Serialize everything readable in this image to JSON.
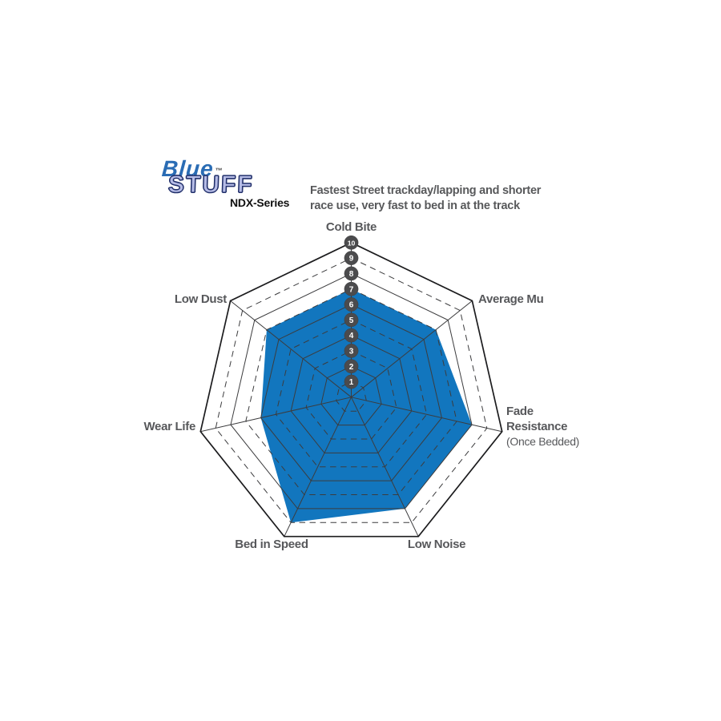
{
  "page": {
    "background": "#ffffff"
  },
  "header": {
    "logo": {
      "word_top": "Blue",
      "tm": "™",
      "word_bottom": "STUFF",
      "series": "NDX-Series",
      "blue_color": "#2a6cb4",
      "lavender_color": "#b6bce6",
      "outline_color": "#22306b"
    },
    "description": "Fastest Street trackday/lapping and shorter\nrace use, very fast to bed in at the track",
    "text_color": "#58595b"
  },
  "chart_data": {
    "type": "radar",
    "title": "BlueStuff NDX-Series performance ratings",
    "categories": [
      "Cold Bite",
      "Average Mu",
      "Fade Resistance (Once Bedded)",
      "Low Noise",
      "Bed in Speed",
      "Wear Life",
      "Low Dust"
    ],
    "axes": [
      {
        "label": "Cold Bite"
      },
      {
        "label": "Average Mu"
      },
      {
        "label": "Fade Resistance",
        "sublabel": "(Once Bedded)"
      },
      {
        "label": "Low Noise"
      },
      {
        "label": "Bed in Speed"
      },
      {
        "label": "Wear Life"
      },
      {
        "label": "Low Dust"
      }
    ],
    "values": [
      7,
      7,
      8,
      8,
      9,
      6,
      7
    ],
    "scale_min": 1,
    "scale_max": 10,
    "tick_labels": [
      "1",
      "2",
      "3",
      "4",
      "5",
      "6",
      "7",
      "8",
      "9",
      "10"
    ],
    "grid": "on",
    "legend_position": "none",
    "fill_color": "#1276be",
    "grid_color": "#3c3c3e",
    "outer_ring_color": "#1c1c1e",
    "badge_color": "#4b4b4d",
    "badge_text_color": "#ffffff",
    "label_color": "#57585b"
  }
}
